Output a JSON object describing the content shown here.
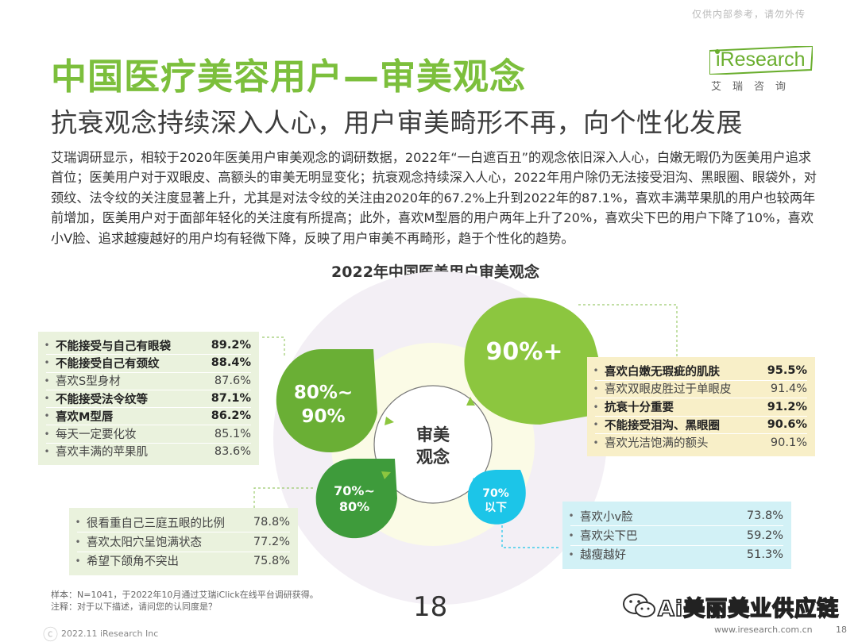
{
  "header": {
    "confidential_note": "仅供内部参考，请勿外传",
    "logo_name": "iResearch",
    "logo_sub": "艾瑞咨询"
  },
  "title": "中国医疗美容用户—审美观念",
  "subtitle": "抗衰观念持续深入人心，用户审美畸形不再，向个性化发展",
  "body": "艾瑞调研显示，相较于2020年医美用户审美观念的调研数据，2022年“一白遮百丑”的观念依旧深入人心，白嫩无暇仍为医美用户追求首位；医美用户对于双眼皮、高额头的审美无明显变化；抗衰观念持续深入人心，2022年用户除仍无法接受泪沟、黑眼圈、眼袋外，对颈纹、法令纹的关注度显著上升，尤其是对法令纹的关注由2020年的67.2%上升到2022年的87.1%，喜欢丰满苹果肌的用户也较两年前增加，医美用户对于面部年轻化的关注度有所提高；此外，喜欢M型唇的用户两年上升了20%，喜欢尖下巴的用户下降了10%，喜欢小V脸、追求越瘦越好的用户均有轻微下降，反映了用户审美不再畸形，趋于个性化的趋势。",
  "chart_title": "2022年中国医美用户审美观念",
  "diagram": {
    "center": [
      "审美",
      "观念"
    ],
    "bubbles": {
      "b90": "90%+",
      "b80_line1": "80%~",
      "b80_line2": "90%",
      "b70_line1": "70%~",
      "b70_line2": "80%",
      "blow_line1": "70%",
      "blow_line2": "以下"
    },
    "colors": {
      "green_dark": "#6aaf35",
      "green_light": "#92c83e",
      "green_mid": "#3e9b3b",
      "cyan": "#1cc5e8",
      "yellow_ring": "#f7f6d6",
      "halo": "#f0ecf3"
    }
  },
  "panels": {
    "left": [
      {
        "label": "不能接受与自己有眼袋",
        "value": "89.2%",
        "bold": true
      },
      {
        "label": "不能接受自己有颈纹",
        "value": "88.4%",
        "bold": true
      },
      {
        "label": "喜欢S型身材",
        "value": "87.6%",
        "bold": false
      },
      {
        "label": "不能接受法令纹等",
        "value": "87.1%",
        "bold": true
      },
      {
        "label": "喜欢M型唇",
        "value": "86.2%",
        "bold": true
      },
      {
        "label": "每天一定要化妆",
        "value": "85.1%",
        "bold": false
      },
      {
        "label": "喜欢丰满的苹果肌",
        "value": "83.6%",
        "bold": false
      }
    ],
    "right": [
      {
        "label": "喜欢白嫩无瑕疵的肌肤",
        "value": "95.5%",
        "bold": true
      },
      {
        "label": "喜欢双眼皮胜过于单眼皮",
        "value": "91.4%",
        "bold": false
      },
      {
        "label": "抗衰十分重要",
        "value": "91.2%",
        "bold": true
      },
      {
        "label": "不能接受泪沟、黑眼圈",
        "value": "90.6%",
        "bold": true
      },
      {
        "label": "喜欢光洁饱满的额头",
        "value": "90.1%",
        "bold": false
      }
    ],
    "bottom_left": [
      {
        "label": "很看重自己三庭五眼的比例",
        "value": "78.8%",
        "bold": false
      },
      {
        "label": "喜欢太阳穴呈饱满状态",
        "value": "77.2%",
        "bold": false
      },
      {
        "label": "希望下颌角不突出",
        "value": "75.8%",
        "bold": false
      }
    ],
    "bottom_right": [
      {
        "label": "喜欢小v脸",
        "value": "73.8%",
        "bold": false
      },
      {
        "label": "喜欢尖下巴",
        "value": "59.2%",
        "bold": false
      },
      {
        "label": "越瘦越好",
        "value": "51.3%",
        "bold": false
      }
    ]
  },
  "footer": {
    "sample_note": "样本：N=1041，于2022年10月通过艾瑞iClick在线平台调研获得。",
    "question_note": "注释：对于以下描述，请问您的认同度是？",
    "watermark_left": "ⓒ",
    "copyright": "2022.11 iResearch Inc",
    "big_page": "18",
    "wechat_label": "Ai美丽美业供应链",
    "website": "www.iresearch.com.cn",
    "page_number": "18"
  }
}
